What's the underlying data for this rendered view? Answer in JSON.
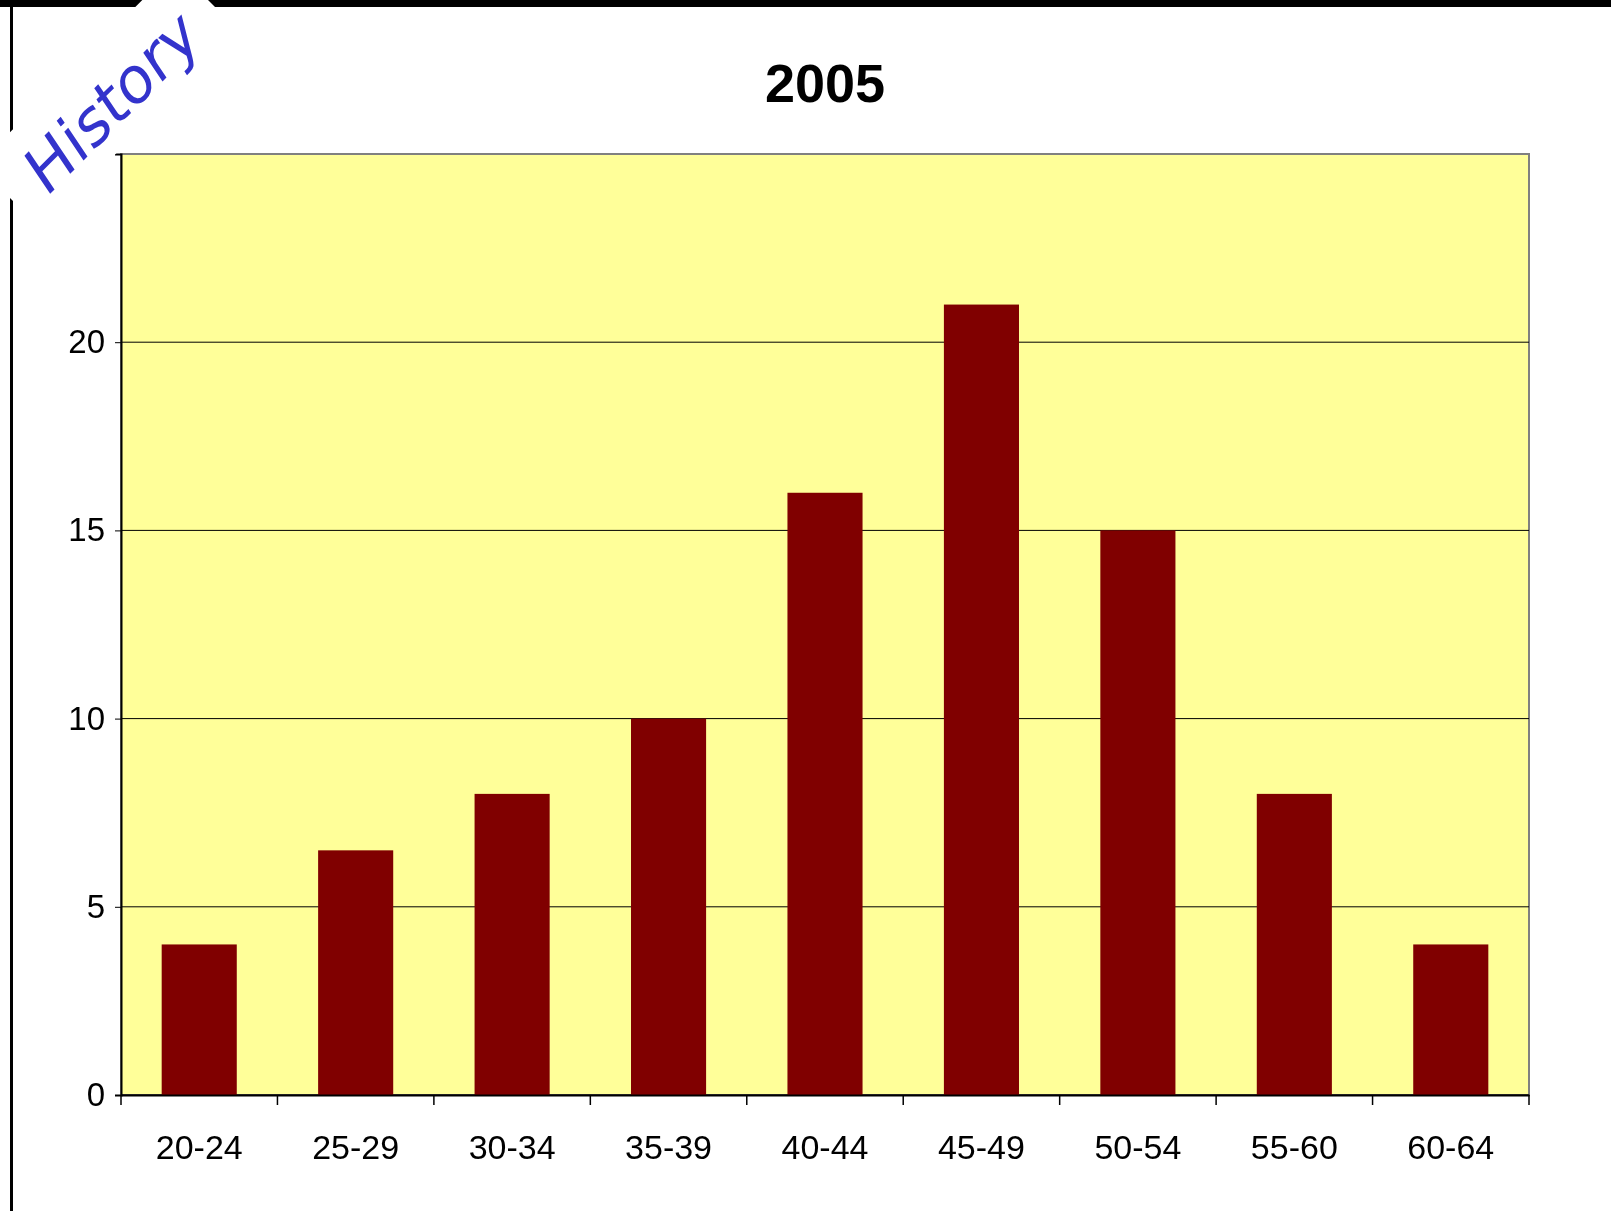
{
  "chart_data": {
    "type": "bar",
    "title": "2005",
    "categories": [
      "20-24",
      "25-29",
      "30-34",
      "35-39",
      "40-44",
      "45-49",
      "50-54",
      "55-60",
      "60-64"
    ],
    "values": [
      4,
      6.5,
      8,
      10,
      16,
      21,
      15,
      8,
      4
    ],
    "color": "#800000",
    "ylim": [
      0,
      25
    ],
    "yticks": [
      0,
      5,
      10,
      15,
      20
    ],
    "grid": "y",
    "annotations": [
      "History"
    ]
  }
}
